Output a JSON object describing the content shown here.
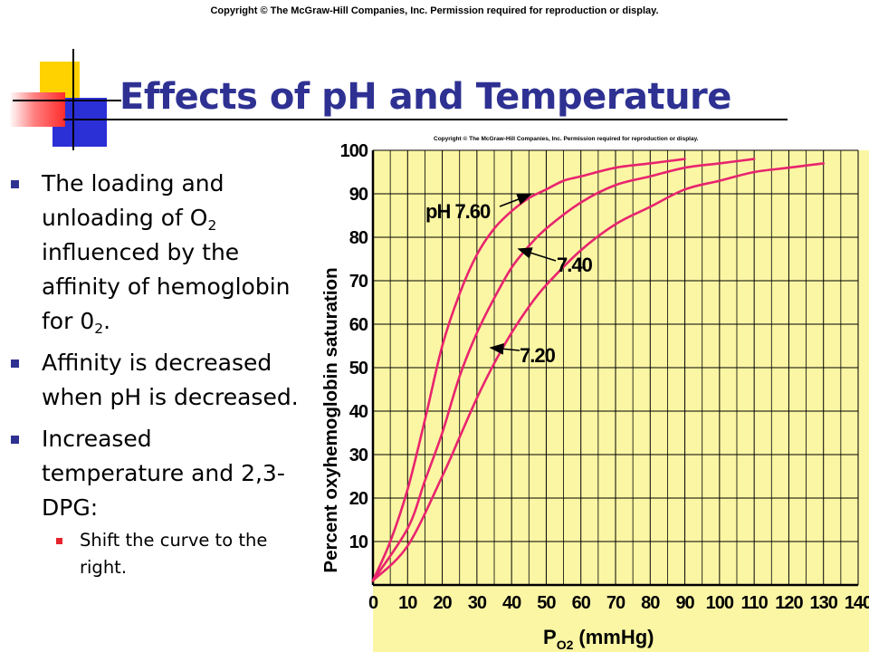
{
  "slide": {
    "copyright": "Copyright © The McGraw-Hill Companies, Inc. Permission required for reproduction or display.",
    "title": "Effects of pH and Temperature",
    "bullets": [
      {
        "pre": "The loading and unloading of O",
        "sub": "2",
        "post": " influenced by the affinity of hemoglobin for 0",
        "sub2": "2",
        "post2": "."
      },
      {
        "text": "Affinity is decreased when pH is decreased."
      },
      {
        "text": "Increased temperature and 2,3-DPG:"
      }
    ],
    "sub_bullets": [
      {
        "text": "Shift the curve to the right."
      }
    ],
    "colors": {
      "title": "#2e3192",
      "bullet": "#2e3192",
      "sub_bullet": "#e6232c",
      "curve": "#e8246e",
      "chart_bg": "#fbf6a4"
    }
  },
  "chart_data": {
    "type": "line",
    "copyright": "Copyright © The McGraw-Hill Companies, Inc. Permission required for reproduction or display.",
    "ylabel": "Percent oxyhemoglobin saturation",
    "xlabel_main": "P",
    "xlabel_sub": "O2",
    "xlabel_unit": "(mmHg)",
    "xlim": [
      0,
      140
    ],
    "ylim": [
      0,
      100
    ],
    "x_ticks": [
      0,
      10,
      20,
      30,
      40,
      50,
      60,
      70,
      80,
      90,
      100,
      110,
      120,
      130,
      140
    ],
    "y_ticks": [
      10,
      20,
      30,
      40,
      50,
      60,
      70,
      80,
      90,
      100
    ],
    "grid": true,
    "series": [
      {
        "name": "pH 7.60",
        "x": [
          0,
          5,
          10,
          15,
          20,
          25,
          30,
          35,
          40,
          45,
          50,
          55,
          60,
          70,
          80,
          90
        ],
        "y": [
          1,
          10,
          22,
          38,
          55,
          67,
          76,
          82,
          86,
          89,
          91,
          93,
          94,
          96,
          97,
          98
        ]
      },
      {
        "name": "7.40",
        "x": [
          0,
          10,
          15,
          20,
          25,
          30,
          35,
          40,
          45,
          50,
          60,
          70,
          80,
          90,
          100,
          110
        ],
        "y": [
          1,
          13,
          24,
          35,
          48,
          58,
          66,
          73,
          78,
          82,
          88,
          92,
          94,
          96,
          97,
          98
        ]
      },
      {
        "name": "7.20",
        "x": [
          0,
          10,
          20,
          25,
          30,
          35,
          40,
          45,
          50,
          60,
          70,
          80,
          90,
          100,
          110,
          120,
          130
        ],
        "y": [
          1,
          9,
          25,
          34,
          43,
          51,
          58,
          64,
          69,
          77,
          83,
          87,
          91,
          93,
          95,
          96,
          97
        ]
      }
    ],
    "annotations": [
      {
        "text": "pH 7.60",
        "series": 0
      },
      {
        "text": "7.40",
        "series": 1
      },
      {
        "text": "7.20",
        "series": 2
      }
    ]
  }
}
